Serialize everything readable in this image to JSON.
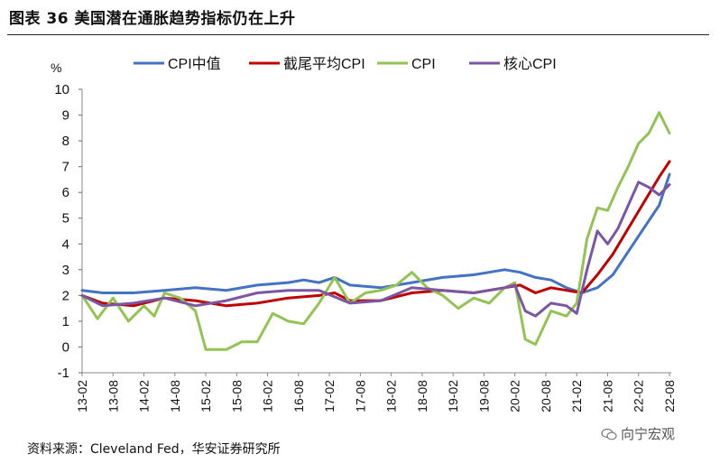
{
  "figure_title": "图表 36  美国潜在通胀趋势指标仍在上升",
  "source_note": "资料来源：Cleveland Fed，华安证券研究所",
  "watermark": "向宁宏观",
  "chart_data": {
    "type": "line",
    "title": "",
    "ylabel": "%",
    "xlabel": "",
    "ylim": [
      -1,
      10
    ],
    "yticks": [
      -1,
      0,
      1,
      2,
      3,
      4,
      5,
      6,
      7,
      8,
      9,
      10
    ],
    "x_start": "2013-02",
    "x_end": "2022-08",
    "xtick_labels": [
      "13-02",
      "13-08",
      "14-02",
      "14-08",
      "15-02",
      "15-08",
      "16-02",
      "16-08",
      "17-02",
      "17-08",
      "18-02",
      "18-08",
      "19-02",
      "19-08",
      "20-02",
      "20-08",
      "21-02",
      "21-08",
      "22-02",
      "22-08"
    ],
    "legend_position": "top",
    "series": [
      {
        "name": "CPI中值",
        "color": "#4472C4",
        "points": [
          [
            "2013-02",
            2.2
          ],
          [
            "2013-06",
            2.1
          ],
          [
            "2013-12",
            2.1
          ],
          [
            "2014-06",
            2.2
          ],
          [
            "2014-12",
            2.3
          ],
          [
            "2015-06",
            2.2
          ],
          [
            "2015-12",
            2.4
          ],
          [
            "2016-06",
            2.5
          ],
          [
            "2016-09",
            2.6
          ],
          [
            "2016-12",
            2.5
          ],
          [
            "2017-03",
            2.7
          ],
          [
            "2017-06",
            2.4
          ],
          [
            "2017-12",
            2.3
          ],
          [
            "2018-06",
            2.5
          ],
          [
            "2018-12",
            2.7
          ],
          [
            "2019-06",
            2.8
          ],
          [
            "2019-09",
            2.9
          ],
          [
            "2019-12",
            3.0
          ],
          [
            "2020-03",
            2.9
          ],
          [
            "2020-06",
            2.7
          ],
          [
            "2020-09",
            2.6
          ],
          [
            "2020-12",
            2.3
          ],
          [
            "2021-03",
            2.1
          ],
          [
            "2021-06",
            2.3
          ],
          [
            "2021-09",
            2.8
          ],
          [
            "2021-12",
            3.7
          ],
          [
            "2022-03",
            4.6
          ],
          [
            "2022-06",
            5.5
          ],
          [
            "2022-08",
            6.7
          ]
        ]
      },
      {
        "name": "截尾平均CPI",
        "color": "#C00000",
        "points": [
          [
            "2013-02",
            2.0
          ],
          [
            "2013-06",
            1.7
          ],
          [
            "2013-12",
            1.6
          ],
          [
            "2014-06",
            1.9
          ],
          [
            "2014-12",
            1.8
          ],
          [
            "2015-06",
            1.6
          ],
          [
            "2015-12",
            1.7
          ],
          [
            "2016-06",
            1.9
          ],
          [
            "2016-12",
            2.0
          ],
          [
            "2017-03",
            2.1
          ],
          [
            "2017-06",
            1.8
          ],
          [
            "2017-12",
            1.8
          ],
          [
            "2018-06",
            2.1
          ],
          [
            "2018-12",
            2.2
          ],
          [
            "2019-06",
            2.1
          ],
          [
            "2019-12",
            2.3
          ],
          [
            "2020-03",
            2.4
          ],
          [
            "2020-06",
            2.1
          ],
          [
            "2020-09",
            2.3
          ],
          [
            "2020-12",
            2.2
          ],
          [
            "2021-03",
            2.1
          ],
          [
            "2021-06",
            2.8
          ],
          [
            "2021-09",
            3.6
          ],
          [
            "2021-12",
            4.6
          ],
          [
            "2022-03",
            5.6
          ],
          [
            "2022-06",
            6.6
          ],
          [
            "2022-08",
            7.2
          ]
        ]
      },
      {
        "name": "CPI",
        "color": "#92C353",
        "points": [
          [
            "2013-02",
            2.0
          ],
          [
            "2013-05",
            1.1
          ],
          [
            "2013-08",
            1.9
          ],
          [
            "2013-11",
            1.0
          ],
          [
            "2014-02",
            1.6
          ],
          [
            "2014-04",
            1.2
          ],
          [
            "2014-06",
            2.1
          ],
          [
            "2014-09",
            1.9
          ],
          [
            "2014-12",
            1.4
          ],
          [
            "2015-02",
            -0.1
          ],
          [
            "2015-06",
            -0.1
          ],
          [
            "2015-09",
            0.2
          ],
          [
            "2015-12",
            0.2
          ],
          [
            "2016-03",
            1.3
          ],
          [
            "2016-06",
            1.0
          ],
          [
            "2016-09",
            0.9
          ],
          [
            "2016-12",
            1.7
          ],
          [
            "2017-03",
            2.7
          ],
          [
            "2017-06",
            1.7
          ],
          [
            "2017-09",
            2.1
          ],
          [
            "2017-12",
            2.2
          ],
          [
            "2018-03",
            2.4
          ],
          [
            "2018-06",
            2.9
          ],
          [
            "2018-09",
            2.3
          ],
          [
            "2018-12",
            2.0
          ],
          [
            "2019-03",
            1.5
          ],
          [
            "2019-06",
            1.9
          ],
          [
            "2019-09",
            1.7
          ],
          [
            "2019-12",
            2.3
          ],
          [
            "2020-02",
            2.5
          ],
          [
            "2020-04",
            0.3
          ],
          [
            "2020-06",
            0.1
          ],
          [
            "2020-09",
            1.4
          ],
          [
            "2020-12",
            1.2
          ],
          [
            "2021-02",
            1.7
          ],
          [
            "2021-04",
            4.2
          ],
          [
            "2021-06",
            5.4
          ],
          [
            "2021-08",
            5.3
          ],
          [
            "2021-10",
            6.2
          ],
          [
            "2021-12",
            7.0
          ],
          [
            "2022-02",
            7.9
          ],
          [
            "2022-04",
            8.3
          ],
          [
            "2022-06",
            9.1
          ],
          [
            "2022-08",
            8.3
          ]
        ]
      },
      {
        "name": "核心CPI",
        "color": "#7B56A5",
        "points": [
          [
            "2013-02",
            2.0
          ],
          [
            "2013-06",
            1.6
          ],
          [
            "2013-12",
            1.7
          ],
          [
            "2014-06",
            1.9
          ],
          [
            "2014-12",
            1.6
          ],
          [
            "2015-06",
            1.8
          ],
          [
            "2015-12",
            2.1
          ],
          [
            "2016-06",
            2.2
          ],
          [
            "2016-12",
            2.2
          ],
          [
            "2017-06",
            1.7
          ],
          [
            "2017-12",
            1.8
          ],
          [
            "2018-06",
            2.3
          ],
          [
            "2018-12",
            2.2
          ],
          [
            "2019-06",
            2.1
          ],
          [
            "2019-12",
            2.3
          ],
          [
            "2020-02",
            2.4
          ],
          [
            "2020-04",
            1.4
          ],
          [
            "2020-06",
            1.2
          ],
          [
            "2020-09",
            1.7
          ],
          [
            "2020-12",
            1.6
          ],
          [
            "2021-02",
            1.3
          ],
          [
            "2021-04",
            3.0
          ],
          [
            "2021-06",
            4.5
          ],
          [
            "2021-08",
            4.0
          ],
          [
            "2021-10",
            4.6
          ],
          [
            "2021-12",
            5.5
          ],
          [
            "2022-02",
            6.4
          ],
          [
            "2022-04",
            6.2
          ],
          [
            "2022-06",
            5.9
          ],
          [
            "2022-08",
            6.3
          ]
        ]
      }
    ]
  }
}
